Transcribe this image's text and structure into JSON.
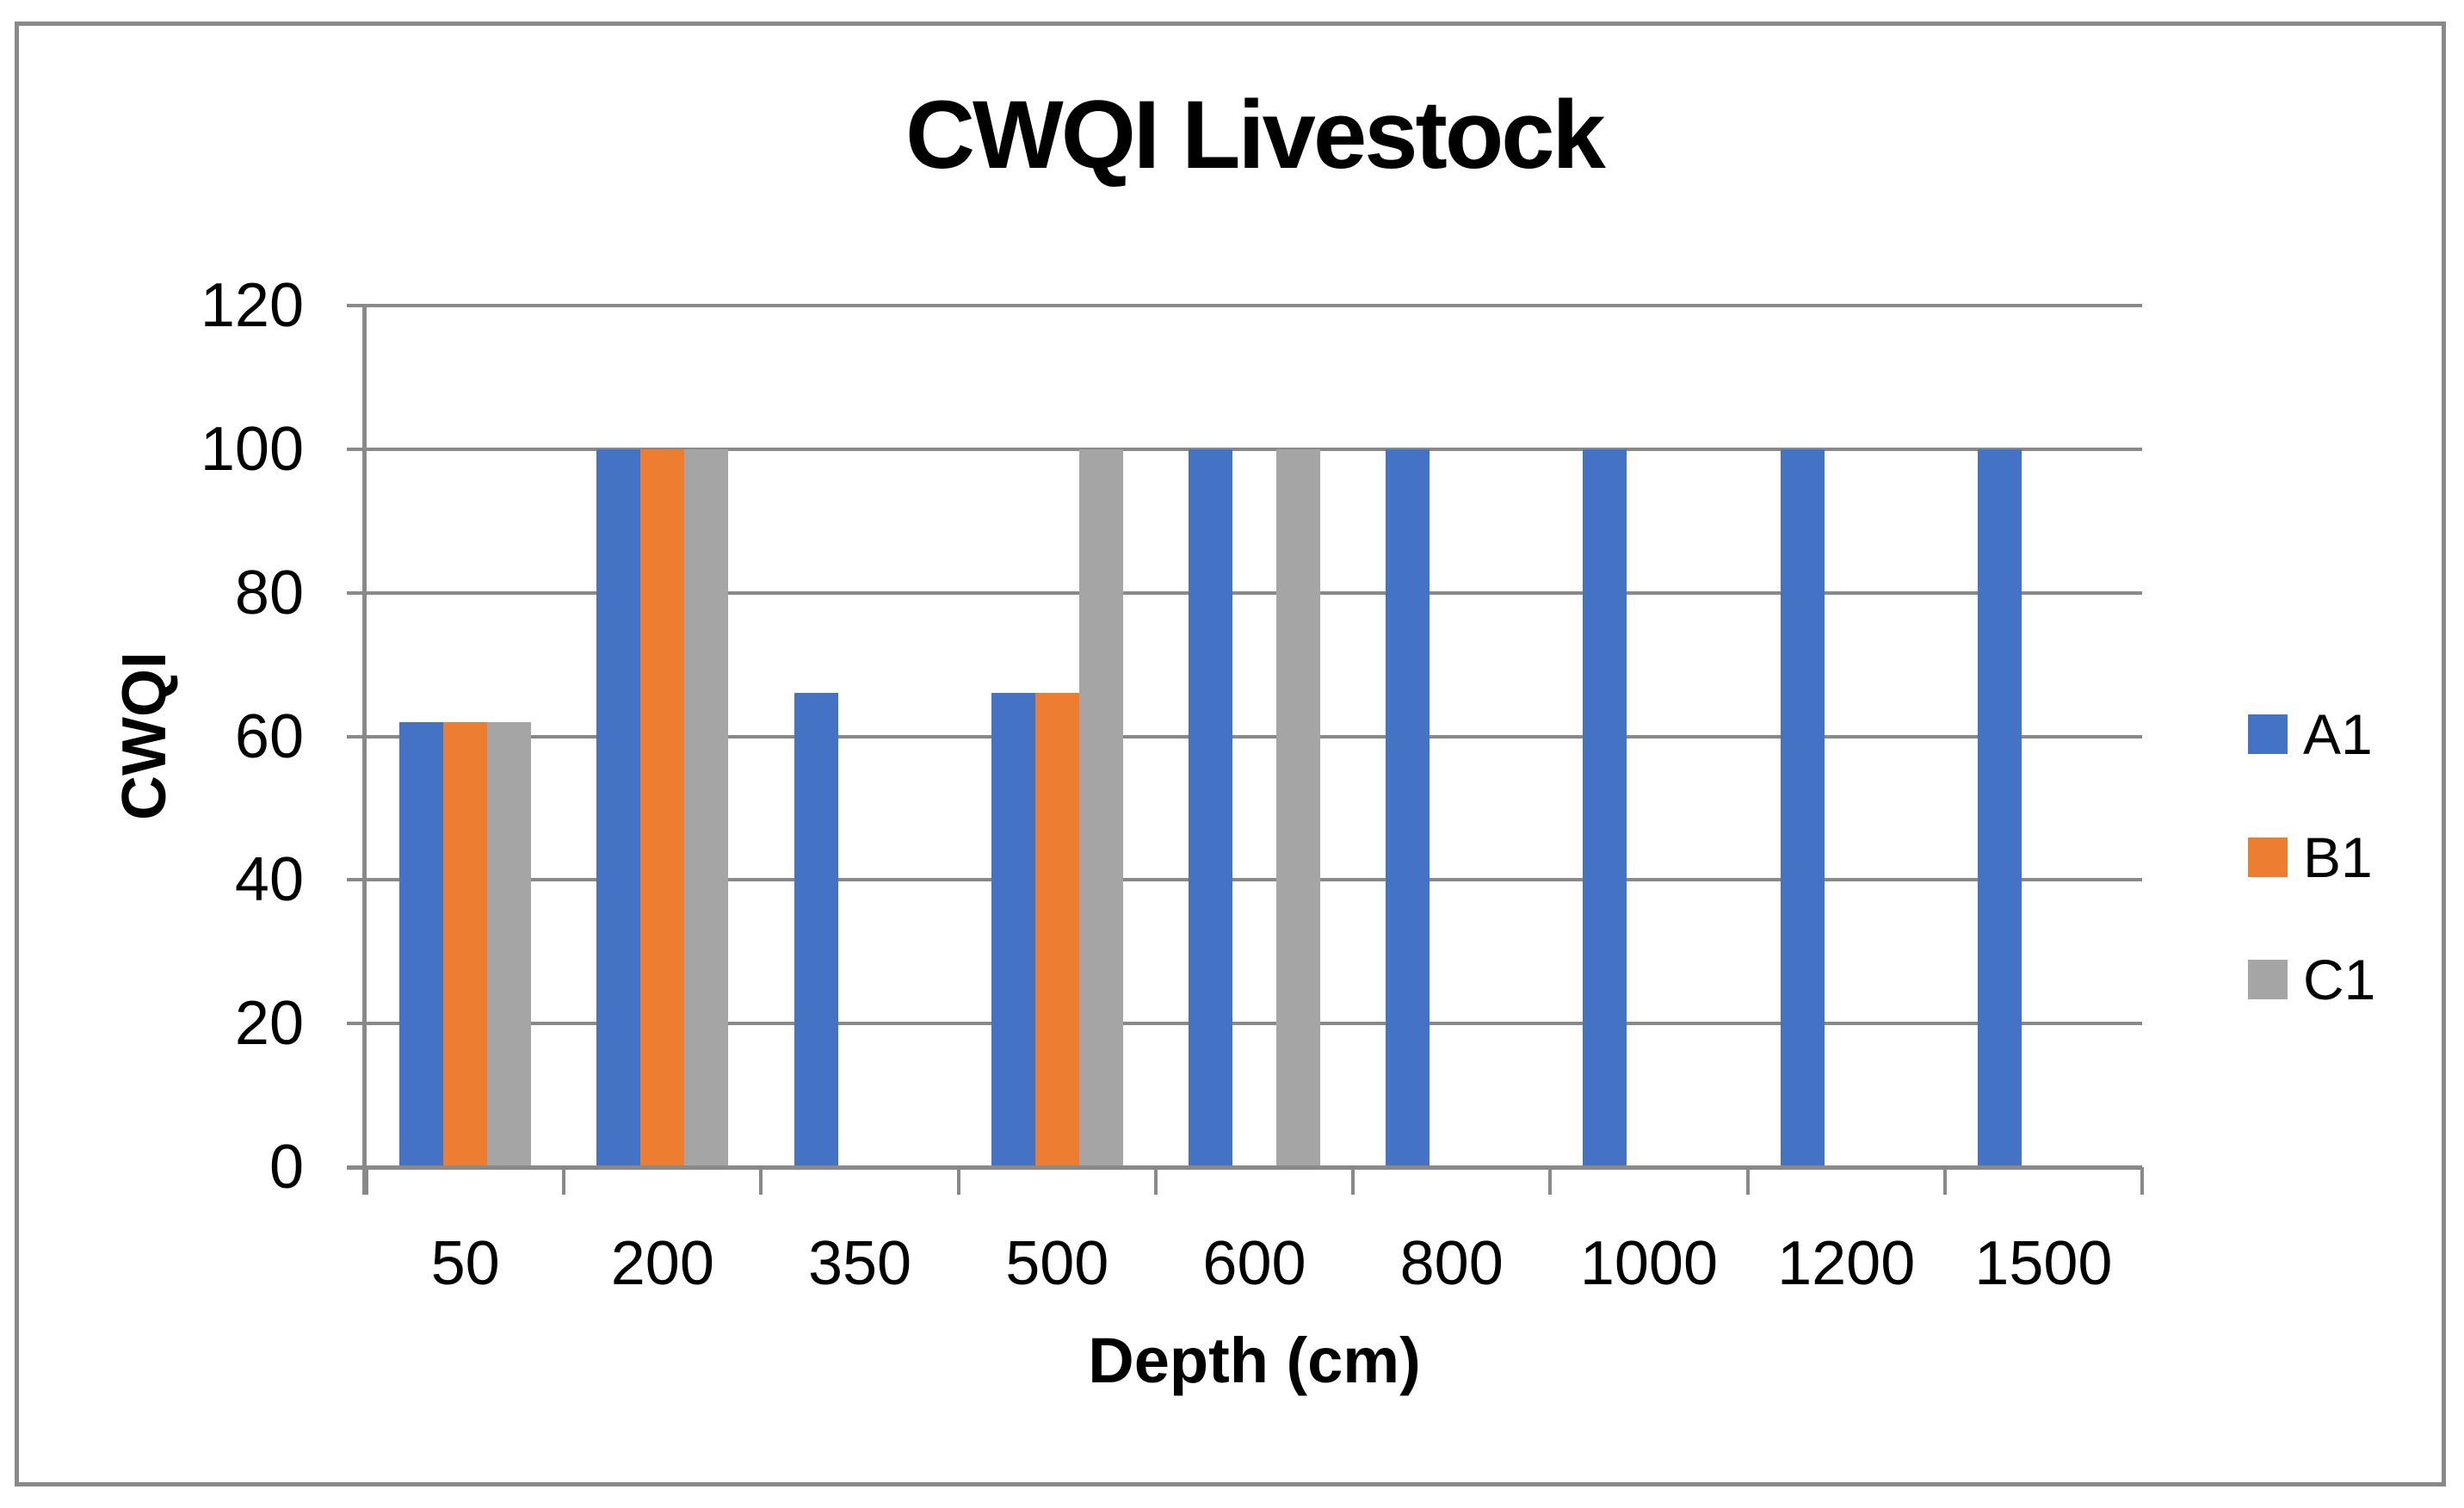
{
  "chart_data": {
    "type": "bar",
    "title": "CWQI Livestock",
    "xlabel": "Depth (cm)",
    "ylabel": "CWQI",
    "categories": [
      "50",
      "200",
      "350",
      "500",
      "600",
      "800",
      "1000",
      "1200",
      "1500"
    ],
    "series": [
      {
        "name": "A1",
        "color": "#4472C4",
        "values": [
          62,
          100,
          66,
          66,
          100,
          100,
          100,
          100,
          100
        ]
      },
      {
        "name": "B1",
        "color": "#ED7D31",
        "values": [
          62,
          100,
          0,
          66,
          0,
          0,
          0,
          0,
          0
        ]
      },
      {
        "name": "C1",
        "color": "#A5A5A5",
        "values": [
          62,
          100,
          0,
          100,
          100,
          0,
          0,
          0,
          0
        ]
      }
    ],
    "ylim": [
      0,
      120
    ],
    "yticks": [
      0,
      20,
      40,
      60,
      80,
      100,
      120
    ],
    "grid": true,
    "legend_position": "right",
    "colors": {
      "grid": "#898989",
      "axis": "#898989",
      "border": "#898989",
      "text": "#000000",
      "background": "#FFFFFF"
    }
  }
}
